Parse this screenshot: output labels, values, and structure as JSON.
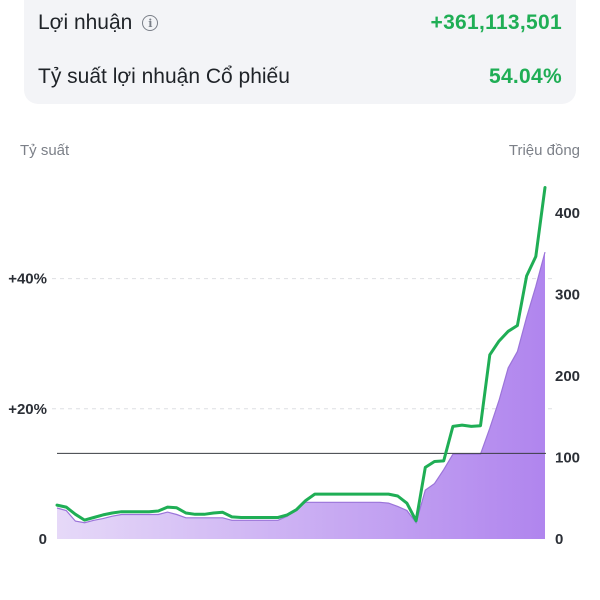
{
  "summary": {
    "profit_label": "Lợi nhuận",
    "profit_value": "+361,113,501",
    "rate_label": "Tỷ suất lợi nhuận Cổ phiếu",
    "rate_value": "54.04%",
    "value_color": "#1fae55",
    "info_icon": "info-circle-icon",
    "info_glyph": "i"
  },
  "chart_data": {
    "type": "line",
    "left_axis_title": "Tỷ suất",
    "right_axis_title": "Triệu đồng",
    "left_ticks": [
      "+40%",
      "+20%",
      "0"
    ],
    "left_tick_values": [
      40,
      20,
      0
    ],
    "right_ticks": [
      "400",
      "300",
      "200",
      "100",
      "0"
    ],
    "right_tick_values": [
      400,
      300,
      200,
      100,
      0
    ],
    "ylim_left": [
      0,
      54
    ],
    "ylim_right": [
      0,
      429
    ],
    "baseline_value_right": 105,
    "series": [
      {
        "axis": "left",
        "color": "#1fae55",
        "y": [
          5.2,
          4.9,
          3.8,
          2.9,
          3.3,
          3.7,
          4.0,
          4.2,
          4.2,
          4.2,
          4.2,
          4.3,
          4.9,
          4.8,
          4.0,
          3.8,
          3.8,
          4.0,
          4.1,
          3.4,
          3.3,
          3.3,
          3.3,
          3.3,
          3.3,
          3.7,
          4.5,
          5.9,
          6.9,
          6.9,
          6.9,
          6.9,
          6.9,
          6.9,
          6.9,
          6.9,
          6.9,
          6.6,
          5.5,
          2.8,
          11.0,
          11.9,
          12.0,
          17.3,
          17.5,
          17.3,
          17.4,
          28.3,
          30.4,
          31.9,
          32.8,
          40.4,
          43.4,
          54.0
        ]
      },
      {
        "axis": "right",
        "color": "#b085ee",
        "area": true,
        "y": [
          38,
          35,
          22,
          20,
          23,
          25,
          28,
          30,
          30,
          30,
          30,
          30,
          33,
          30,
          26,
          26,
          26,
          26,
          26,
          23,
          23,
          23,
          23,
          23,
          23,
          28,
          37,
          45,
          45,
          45,
          45,
          45,
          45,
          45,
          45,
          45,
          44,
          40,
          35,
          20,
          60,
          68,
          85,
          104,
          104,
          104,
          104,
          136,
          170,
          210,
          230,
          272,
          310,
          352
        ]
      }
    ]
  }
}
